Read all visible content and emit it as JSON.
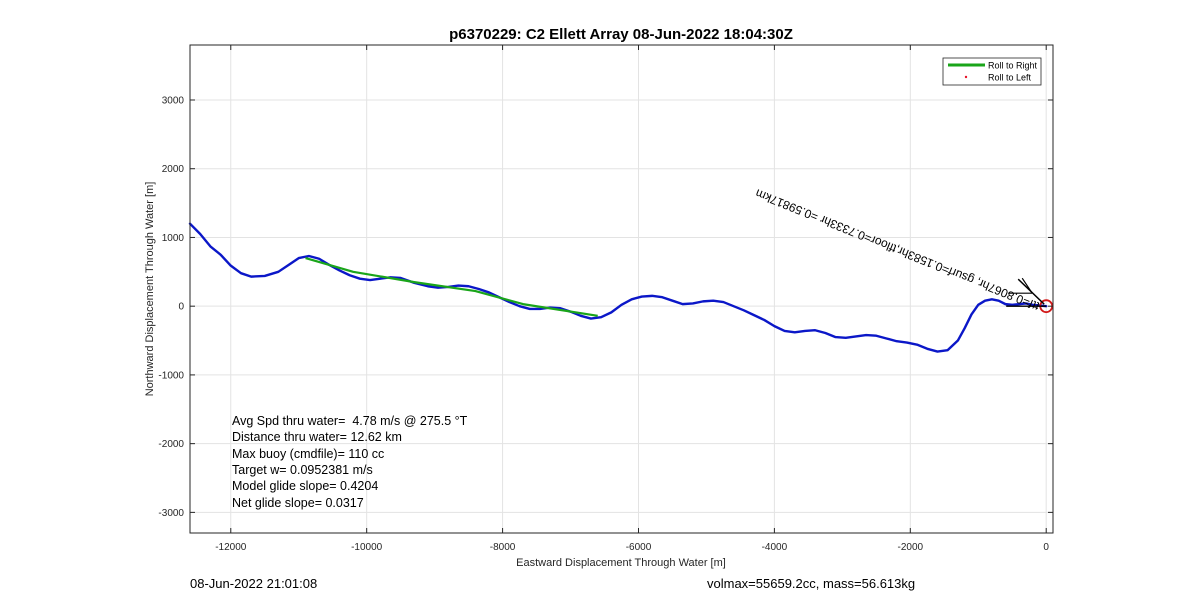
{
  "chart_data": {
    "type": "line",
    "title": "p6370229: C2 Ellett Array 08-Jun-2022 18:04:30Z",
    "xlabel": "Eastward Displacement Through Water [m]",
    "ylabel": "Northward Displacement Through Water [m]",
    "xlim": [
      -12600,
      100
    ],
    "ylim": [
      -3300,
      3800
    ],
    "xticks": [
      -12000,
      -10000,
      -8000,
      -6000,
      -4000,
      -2000,
      0
    ],
    "yticks": [
      -3000,
      -2000,
      -1000,
      0,
      1000,
      2000,
      3000
    ],
    "grid": true,
    "legend_position": "top-right",
    "legend": [
      {
        "label": "Roll to Right",
        "color": "#1aa51a",
        "style": "line"
      },
      {
        "label": "Roll to Left",
        "color": "#e8132a",
        "style": "dot"
      }
    ],
    "series": [
      {
        "name": "track",
        "color": "#0b17c8",
        "x": [
          -12600,
          -12450,
          -12300,
          -12150,
          -12000,
          -11850,
          -11700,
          -11500,
          -11300,
          -11150,
          -11000,
          -10850,
          -10700,
          -10550,
          -10400,
          -10250,
          -10100,
          -9950,
          -9800,
          -9650,
          -9500,
          -9300,
          -9100,
          -8950,
          -8800,
          -8650,
          -8500,
          -8350,
          -8200,
          -8050,
          -7900,
          -7750,
          -7600,
          -7450,
          -7300,
          -7150,
          -7000,
          -6850,
          -6700,
          -6550,
          -6400,
          -6250,
          -6100,
          -5950,
          -5800,
          -5650,
          -5500,
          -5350,
          -5200,
          -5050,
          -4900,
          -4750,
          -4600,
          -4450,
          -4300,
          -4150,
          -4000,
          -3850,
          -3700,
          -3550,
          -3400,
          -3250,
          -3100,
          -2950,
          -2800,
          -2650,
          -2500,
          -2350,
          -2200,
          -2050,
          -1900,
          -1750,
          -1600,
          -1450,
          -1300,
          -1200,
          -1100,
          -1000,
          -900,
          -800,
          -700,
          -600,
          -500,
          -400,
          -300,
          -200,
          -100,
          0
        ],
        "y": [
          1200,
          1050,
          870,
          750,
          590,
          480,
          430,
          440,
          500,
          600,
          700,
          730,
          690,
          600,
          520,
          450,
          400,
          380,
          400,
          420,
          410,
          340,
          290,
          270,
          280,
          300,
          290,
          250,
          200,
          130,
          60,
          0,
          -40,
          -40,
          -20,
          -30,
          -80,
          -140,
          -180,
          -160,
          -90,
          20,
          100,
          140,
          150,
          130,
          80,
          30,
          40,
          70,
          80,
          60,
          0,
          -60,
          -130,
          -200,
          -290,
          -360,
          -380,
          -360,
          -350,
          -390,
          -450,
          -460,
          -440,
          -420,
          -430,
          -470,
          -510,
          -530,
          -560,
          -620,
          -660,
          -640,
          -500,
          -320,
          -120,
          20,
          80,
          100,
          80,
          30,
          20,
          30,
          40,
          20,
          10,
          0
        ]
      },
      {
        "name": "Roll to Right",
        "color": "#1aa51a",
        "x": [
          -10900,
          -10200,
          -9300,
          -8400,
          -7700,
          -6600
        ],
        "y": [
          700,
          500,
          350,
          220,
          30,
          -140
        ]
      }
    ],
    "end_marker": {
      "x": 0,
      "y": 0,
      "color": "#d21a1a"
    },
    "arrow_annotation": "ttf=0.8067hr, gsurf=0.1583hr,tfloor=0.7333hr =0.59817km",
    "stats": [
      "Avg Spd thru water=  4.78 m/s @ 275.5 °T",
      "Distance thru water= 12.62 km",
      "Max buoy (cmdfile)= 110 cc",
      "Target w= 0.0952381 m/s",
      "Model glide slope= 0.4204",
      "Net glide slope= 0.0317"
    ]
  },
  "footer": {
    "timestamp": "08-Jun-2022 21:01:08",
    "volmax_mass": "volmax=55659.2cc, mass=56.613kg"
  }
}
